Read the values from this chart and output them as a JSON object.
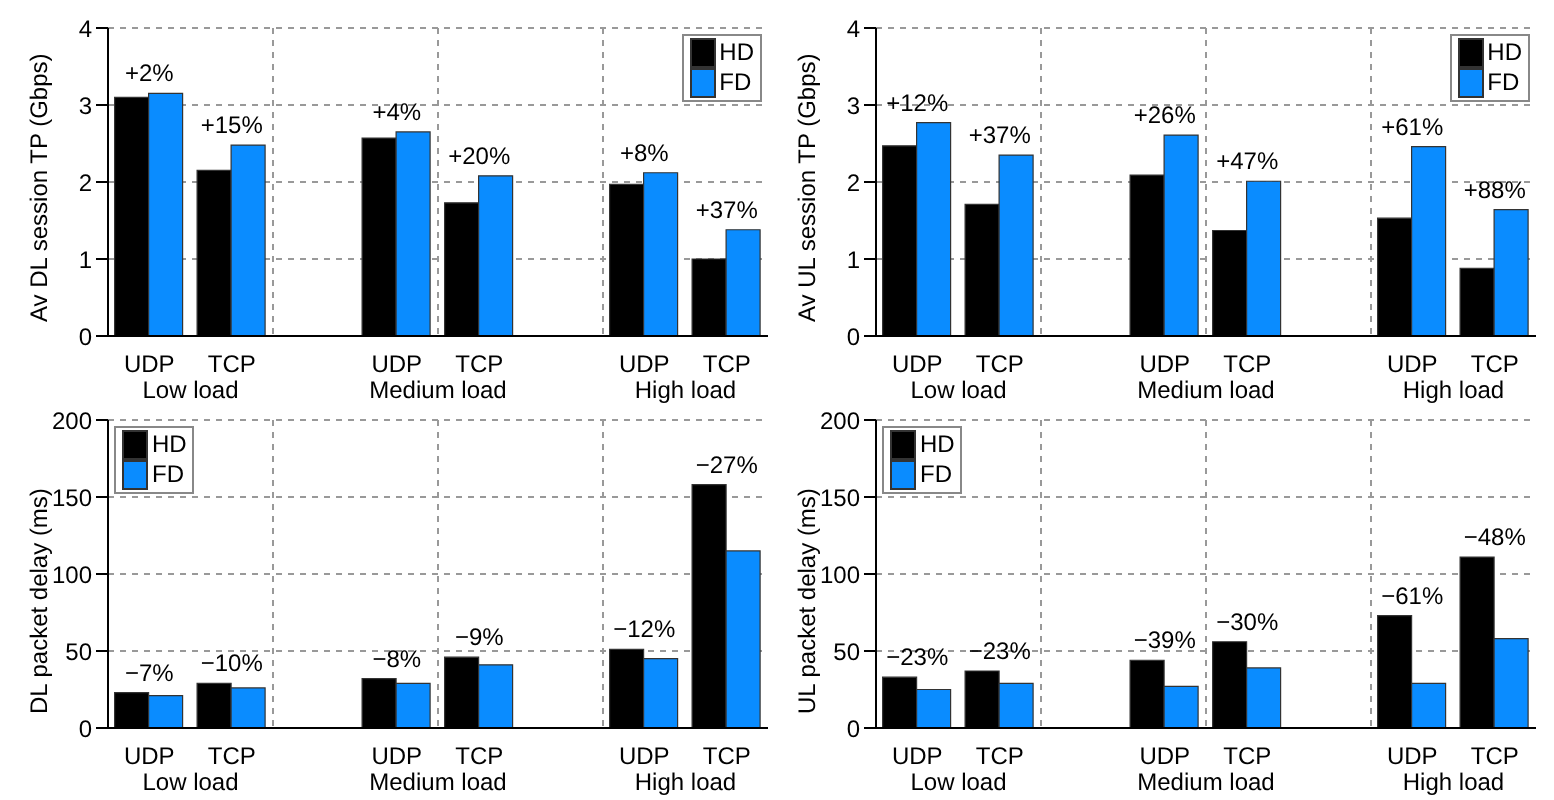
{
  "chart_data": [
    {
      "type": "bar",
      "ylabel": "Av DL session TP (Gbps)",
      "categories": [
        "UDP",
        "TCP",
        null,
        "UDP",
        "TCP",
        null,
        "UDP",
        "TCP"
      ],
      "ylim": [
        0,
        4
      ],
      "yticks": [
        0,
        1,
        2,
        3,
        4
      ],
      "grid": true,
      "legend": "top right",
      "annotations": [
        "Low load",
        "Medium load",
        "High load",
        {
          "text": "+2%",
          "y": 3.15
        },
        {
          "text": "+15%",
          "y": 2.48
        },
        {
          "text": "+4%",
          "y": 2.65
        },
        {
          "text": "+20%",
          "y": 2.08
        },
        {
          "text": "+8%",
          "y": 2.12
        },
        {
          "text": "+37%",
          "y": 1.38
        }
      ],
      "series": [
        {
          "name": "HD",
          "color": "#000000",
          "values": [
            3.1,
            2.15,
            null,
            2.57,
            1.73,
            null,
            1.97,
            1.0
          ]
        },
        {
          "name": "FD",
          "color": "#0a8cff",
          "values": [
            3.15,
            2.48,
            null,
            2.65,
            2.08,
            null,
            2.12,
            1.38
          ]
        }
      ]
    },
    {
      "type": "bar",
      "ylabel": "Av UL session TP (Gbps)",
      "categories": [
        "UDP",
        "TCP",
        null,
        "UDP",
        "TCP",
        null,
        "UDP",
        "TCP"
      ],
      "ylim": [
        0,
        4
      ],
      "yticks": [
        0,
        1,
        2,
        3,
        4
      ],
      "grid": true,
      "legend": "top right",
      "annotations": [
        "Low load",
        "Medium load",
        "High load",
        {
          "text": "+12%",
          "y": 2.77
        },
        {
          "text": "+37%",
          "y": 2.35
        },
        {
          "text": "+26%",
          "y": 2.61
        },
        {
          "text": "+47%",
          "y": 2.01
        },
        {
          "text": "+61%",
          "y": 2.46
        },
        {
          "text": "+88%",
          "y": 1.64
        }
      ],
      "series": [
        {
          "name": "HD",
          "color": "#000000",
          "values": [
            2.47,
            1.71,
            null,
            2.09,
            1.37,
            null,
            1.53,
            0.88
          ]
        },
        {
          "name": "FD",
          "color": "#0a8cff",
          "values": [
            2.77,
            2.35,
            null,
            2.61,
            2.01,
            null,
            2.46,
            1.64
          ]
        }
      ]
    },
    {
      "type": "bar",
      "ylabel": "DL packet delay (ms)",
      "categories": [
        "UDP",
        "TCP",
        null,
        "UDP",
        "TCP",
        null,
        "UDP",
        "TCP"
      ],
      "ylim": [
        0,
        200
      ],
      "yticks": [
        0,
        50,
        100,
        150,
        200
      ],
      "grid": true,
      "legend": "top left",
      "annotations": [
        "Low load",
        "Medium load",
        "High load",
        {
          "text": "−7%",
          "y": 23
        },
        {
          "text": "−10%",
          "y": 29
        },
        {
          "text": "−8%",
          "y": 32
        },
        {
          "text": "−9%",
          "y": 46
        },
        {
          "text": "−12%",
          "y": 51
        },
        {
          "text": "−27%",
          "y": 158
        }
      ],
      "series": [
        {
          "name": "HD",
          "color": "#000000",
          "values": [
            23,
            29,
            null,
            32,
            46,
            null,
            51,
            158
          ]
        },
        {
          "name": "FD",
          "color": "#0a8cff",
          "values": [
            21,
            26,
            null,
            29,
            41,
            null,
            45,
            115
          ]
        }
      ]
    },
    {
      "type": "bar",
      "ylabel": "UL packet delay (ms)",
      "categories": [
        "UDP",
        "TCP",
        null,
        "UDP",
        "TCP",
        null,
        "UDP",
        "TCP"
      ],
      "ylim": [
        0,
        200
      ],
      "yticks": [
        0,
        50,
        100,
        150,
        200
      ],
      "grid": true,
      "legend": "top left",
      "annotations": [
        "Low load",
        "Medium load",
        "High load",
        {
          "text": "−23%",
          "y": 33
        },
        {
          "text": "−23%",
          "y": 37
        },
        {
          "text": "−39%",
          "y": 44
        },
        {
          "text": "−30%",
          "y": 56
        },
        {
          "text": "−61%",
          "y": 73
        },
        {
          "text": "−48%",
          "y": 111
        }
      ],
      "series": [
        {
          "name": "HD",
          "color": "#000000",
          "values": [
            33,
            37,
            null,
            44,
            56,
            null,
            73,
            111
          ]
        },
        {
          "name": "FD",
          "color": "#0a8cff",
          "values": [
            25,
            29,
            null,
            27,
            39,
            null,
            29,
            58
          ]
        }
      ]
    }
  ]
}
